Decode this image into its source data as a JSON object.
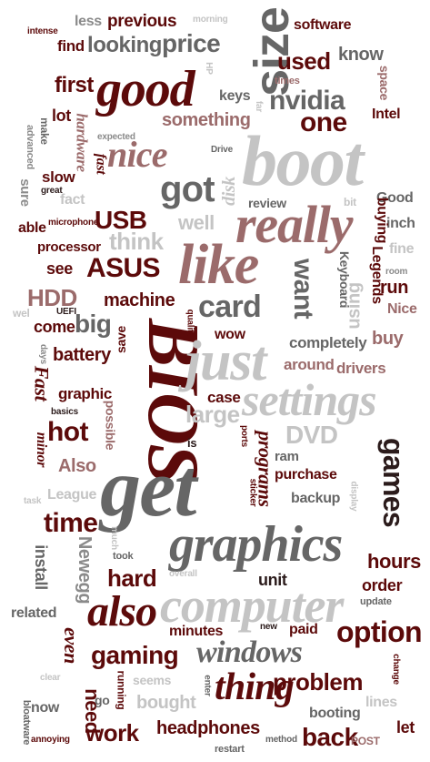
{
  "colors": {
    "dark_red": "#5c0a0a",
    "mauve": "#9b6b6b",
    "dark_gray": "#666666",
    "mid_gray": "#8a8a8a",
    "light_gray": "#c4c4c4",
    "near_black": "#2b1b1b"
  },
  "words": [
    {
      "text": "less"
    },
    {
      "text": "previous"
    },
    {
      "text": "morning"
    },
    {
      "text": "software"
    },
    {
      "text": "intense"
    },
    {
      "text": "find"
    },
    {
      "text": "looking"
    },
    {
      "text": "price"
    },
    {
      "text": "size"
    },
    {
      "text": "know"
    },
    {
      "text": "used"
    },
    {
      "text": "times"
    },
    {
      "text": "HP"
    },
    {
      "text": "first"
    },
    {
      "text": "good"
    },
    {
      "text": "keys"
    },
    {
      "text": "nvidia"
    },
    {
      "text": "space"
    },
    {
      "text": "far"
    },
    {
      "text": "lot"
    },
    {
      "text": "hardware"
    },
    {
      "text": "Intel"
    },
    {
      "text": "one"
    },
    {
      "text": "something"
    },
    {
      "text": "make"
    },
    {
      "text": "advanced"
    },
    {
      "text": "expected"
    },
    {
      "text": "fast"
    },
    {
      "text": "nice"
    },
    {
      "text": "Drive"
    },
    {
      "text": "boot"
    },
    {
      "text": "slow"
    },
    {
      "text": "sure"
    },
    {
      "text": "great"
    },
    {
      "text": "disk"
    },
    {
      "text": "fact"
    },
    {
      "text": "got"
    },
    {
      "text": "USB"
    },
    {
      "text": "review"
    },
    {
      "text": "bit"
    },
    {
      "text": "Good"
    },
    {
      "text": "microphone"
    },
    {
      "text": "able"
    },
    {
      "text": "well"
    },
    {
      "text": "inch"
    },
    {
      "text": "really"
    },
    {
      "text": "buying"
    },
    {
      "text": "think"
    },
    {
      "text": "processor"
    },
    {
      "text": "fine"
    },
    {
      "text": "see"
    },
    {
      "text": "ASUS"
    },
    {
      "text": "like"
    },
    {
      "text": "room"
    },
    {
      "text": "Keyboard"
    },
    {
      "text": "Legends"
    },
    {
      "text": "want"
    },
    {
      "text": "HDD"
    },
    {
      "text": "run"
    },
    {
      "text": "machine"
    },
    {
      "text": "using"
    },
    {
      "text": "UEFI"
    },
    {
      "text": "card"
    },
    {
      "text": "Nice"
    },
    {
      "text": "wel"
    },
    {
      "text": "come"
    },
    {
      "text": "big"
    },
    {
      "text": "BIOS"
    },
    {
      "text": "quality"
    },
    {
      "text": "save"
    },
    {
      "text": "buy"
    },
    {
      "text": "wow"
    },
    {
      "text": "completely"
    },
    {
      "text": "days"
    },
    {
      "text": "battery"
    },
    {
      "text": "just"
    },
    {
      "text": "around"
    },
    {
      "text": "drivers"
    },
    {
      "text": "Fast"
    },
    {
      "text": "possible"
    },
    {
      "text": "graphic"
    },
    {
      "text": "case"
    },
    {
      "text": "settings"
    },
    {
      "text": "basics"
    },
    {
      "text": "large"
    },
    {
      "text": "hot"
    },
    {
      "text": "DVD"
    },
    {
      "text": "minor"
    },
    {
      "text": "ports"
    },
    {
      "text": "programs"
    },
    {
      "text": "ram"
    },
    {
      "text": "games"
    },
    {
      "text": "is"
    },
    {
      "text": "Also"
    },
    {
      "text": "get"
    },
    {
      "text": "purchase"
    },
    {
      "text": "sticker"
    },
    {
      "text": "backup"
    },
    {
      "text": "display"
    },
    {
      "text": "task"
    },
    {
      "text": "League"
    },
    {
      "text": "time"
    },
    {
      "text": "graphics"
    },
    {
      "text": "Newegg"
    },
    {
      "text": "install"
    },
    {
      "text": "much"
    },
    {
      "text": "took"
    },
    {
      "text": "hours"
    },
    {
      "text": "hard"
    },
    {
      "text": "overall"
    },
    {
      "text": "unit"
    },
    {
      "text": "order"
    },
    {
      "text": "related"
    },
    {
      "text": "computer"
    },
    {
      "text": "update"
    },
    {
      "text": "also"
    },
    {
      "text": "even"
    },
    {
      "text": "new"
    },
    {
      "text": "paid"
    },
    {
      "text": "minutes"
    },
    {
      "text": "option"
    },
    {
      "text": "gaming"
    },
    {
      "text": "windows"
    },
    {
      "text": "change"
    },
    {
      "text": "clear"
    },
    {
      "text": "running"
    },
    {
      "text": "seems"
    },
    {
      "text": "enter"
    },
    {
      "text": "problem"
    },
    {
      "text": "thing"
    },
    {
      "text": "now"
    },
    {
      "text": "need"
    },
    {
      "text": "go"
    },
    {
      "text": "bought"
    },
    {
      "text": "lines"
    },
    {
      "text": "booting"
    },
    {
      "text": "bloatware"
    },
    {
      "text": "work"
    },
    {
      "text": "headphones"
    },
    {
      "text": "back"
    },
    {
      "text": "let"
    },
    {
      "text": "annoying"
    },
    {
      "text": "method"
    },
    {
      "text": "restart"
    },
    {
      "text": "POST"
    }
  ]
}
